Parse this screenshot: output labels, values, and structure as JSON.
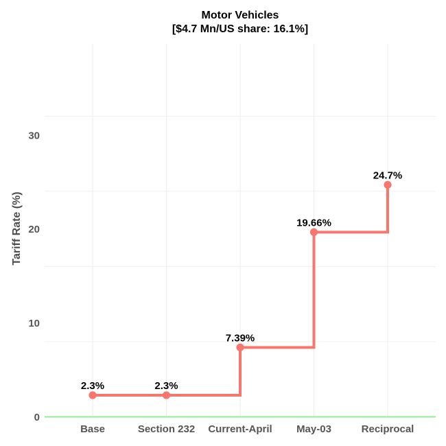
{
  "chart_data": {
    "type": "line",
    "subtype": "step-after",
    "title": "Motor Vehicles",
    "subtitle": "[$4.7 Mn/US share: 16.1%]",
    "xlabel": "",
    "ylabel": "Tariff Rate (%)",
    "categories": [
      "Base",
      "Section 232",
      "Current-April",
      "May-03",
      "Reciprocal"
    ],
    "values": [
      2.3,
      2.3,
      7.39,
      19.66,
      24.7
    ],
    "point_labels": [
      "2.3%",
      "2.3%",
      "7.39%",
      "19.66%",
      "24.7%"
    ],
    "ylim": [
      0,
      39.7
    ],
    "yticks": [
      0,
      10,
      20,
      30
    ],
    "minor_gridline_values": [
      8,
      16,
      24,
      32
    ],
    "grid": true,
    "legend": "none",
    "colors": {
      "line": "#F8766D",
      "point": "#F8766D",
      "baseline": "#90EE90",
      "gridline": "#ECECEC",
      "axis_text": "#555555",
      "label_text": "#000000",
      "title_text": "#000000"
    }
  }
}
